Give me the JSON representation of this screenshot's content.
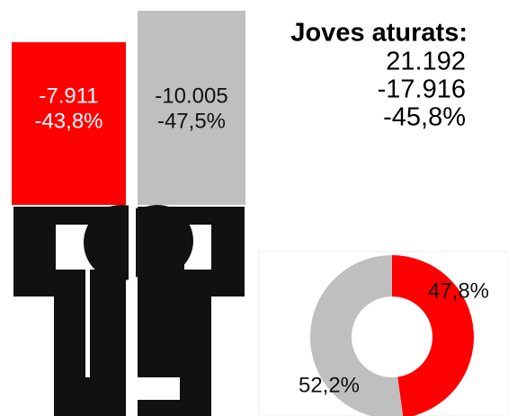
{
  "signs": [
    {
      "lines": [
        "-7.911",
        "-43,8%"
      ],
      "color": "#ff0000"
    },
    {
      "lines": [
        "-10.005",
        "-47,5%"
      ],
      "color": "#bfbfbf"
    }
  ],
  "summary": {
    "title": "Joves aturats:",
    "lines": [
      "21.192",
      "-17.916",
      "-45,8%"
    ]
  },
  "chart_data": {
    "type": "donut",
    "values": [
      47.8,
      52.2
    ],
    "value_labels": [
      "47,8%",
      "52,2%"
    ],
    "colors": [
      "#ff0000",
      "#bfbfbf"
    ]
  }
}
